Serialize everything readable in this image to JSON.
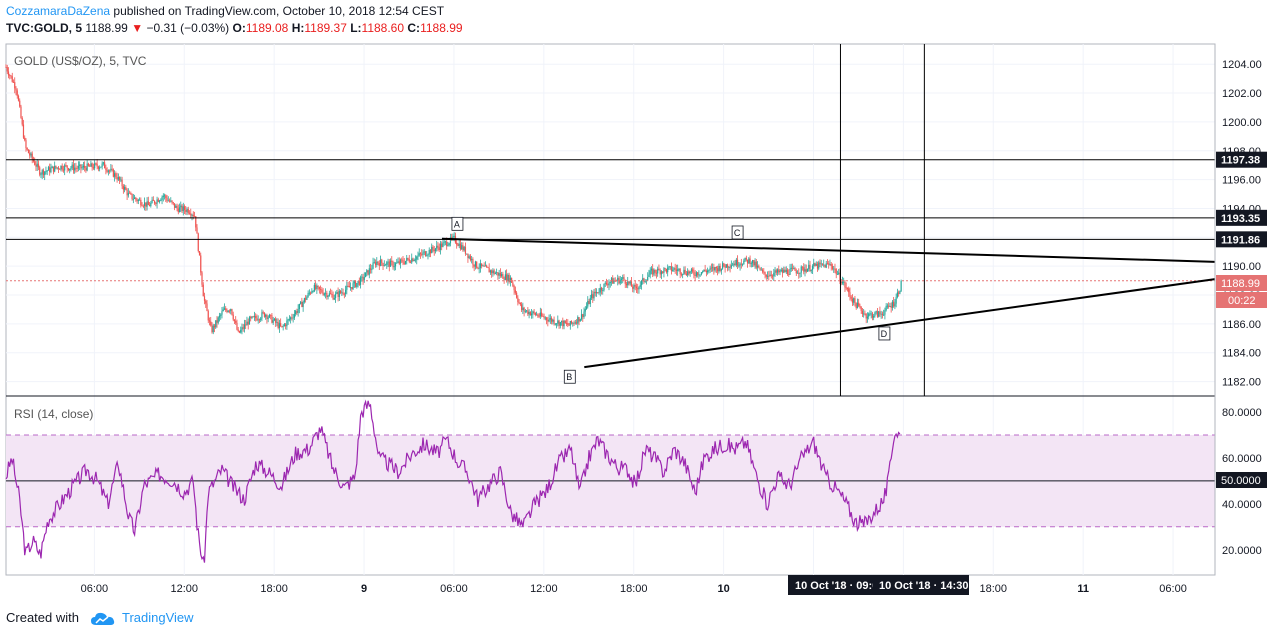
{
  "header": {
    "author": "CozzamaraDaZena",
    "published": "published on TradingView.com, October 10, 2018 12:54 CEST",
    "symbol_line": "TVC:GOLD, 5",
    "last": "1188.99",
    "change": "−0.31 (−0.03%)",
    "o_label": "O:",
    "o": "1189.08",
    "h_label": "H:",
    "h": "1189.37",
    "l_label": "L:",
    "l": "1188.60",
    "c_label": "C:",
    "c": "1188.99"
  },
  "footer": {
    "created_with": "Created with",
    "brand": "TradingView"
  },
  "colors": {
    "up": "#26a69a",
    "down": "#ef5350",
    "rsi": "#9c27b0",
    "rsi_band": "#f3e5f5",
    "price_line": "#e57373",
    "axis_label_bg": "#131722"
  },
  "chart_data": [
    {
      "type": "candlestick",
      "title": "GOLD (US$/OZ), 5, TVC",
      "y_ticks": [
        "1182.00",
        "1184.00",
        "1186.00",
        "1188.00",
        "1190.00",
        "1192.00",
        "1194.00",
        "1196.00",
        "1198.00",
        "1200.00",
        "1202.00",
        "1204.00"
      ],
      "ylim": [
        1181,
        1205.4
      ],
      "x_ticks": [
        "06:00",
        "12:00",
        "18:00",
        "9",
        "06:00",
        "12:00",
        "18:00",
        "10",
        "06:00",
        "12:00",
        "18:00",
        "11",
        "06:00"
      ],
      "x_tick_times": [
        6,
        12,
        18,
        24,
        30,
        36,
        42,
        48,
        54,
        60,
        66,
        72,
        78
      ],
      "xlim": [
        0.1,
        80.8
      ],
      "price_path": [
        [
          0.1,
          1203.8
        ],
        [
          0.8,
          1202.3
        ],
        [
          1.4,
          1198.2
        ],
        [
          2.4,
          1196.5
        ],
        [
          3.7,
          1196.9
        ],
        [
          5.0,
          1196.8
        ],
        [
          6.6,
          1197.0
        ],
        [
          7.5,
          1196.2
        ],
        [
          8.3,
          1194.9
        ],
        [
          9.6,
          1194.2
        ],
        [
          10.6,
          1194.9
        ],
        [
          11.5,
          1194.0
        ],
        [
          12.3,
          1193.9
        ],
        [
          12.7,
          1193.5
        ],
        [
          13.3,
          1187.8
        ],
        [
          13.8,
          1185.5
        ],
        [
          14.6,
          1186.9
        ],
        [
          15.1,
          1187.1
        ],
        [
          15.6,
          1185.3
        ],
        [
          16.3,
          1186.2
        ],
        [
          17.4,
          1186.7
        ],
        [
          18.5,
          1185.7
        ],
        [
          19.5,
          1186.9
        ],
        [
          20.6,
          1188.5
        ],
        [
          22.0,
          1187.9
        ],
        [
          23.8,
          1189.0
        ],
        [
          24.8,
          1190.3
        ],
        [
          26.0,
          1190.1
        ],
        [
          27.4,
          1190.6
        ],
        [
          28.9,
          1191.3
        ],
        [
          30.0,
          1191.9
        ],
        [
          30.8,
          1191.0
        ],
        [
          31.4,
          1190.1
        ],
        [
          32.6,
          1189.6
        ],
        [
          33.8,
          1189.1
        ],
        [
          34.5,
          1187.0
        ],
        [
          35.6,
          1186.6
        ],
        [
          36.7,
          1186.2
        ],
        [
          37.7,
          1185.9
        ],
        [
          38.5,
          1186.5
        ],
        [
          39.2,
          1187.9
        ],
        [
          40.3,
          1188.9
        ],
        [
          41.3,
          1189.1
        ],
        [
          42.1,
          1188.4
        ],
        [
          43.2,
          1189.6
        ],
        [
          44.6,
          1189.8
        ],
        [
          46.0,
          1189.5
        ],
        [
          47.4,
          1189.8
        ],
        [
          48.6,
          1190.2
        ],
        [
          49.8,
          1190.4
        ],
        [
          50.7,
          1189.4
        ],
        [
          51.9,
          1189.6
        ],
        [
          53.0,
          1189.7
        ],
        [
          54.1,
          1190.0
        ],
        [
          55.2,
          1190.1
        ],
        [
          56.0,
          1188.8
        ],
        [
          56.7,
          1187.5
        ],
        [
          57.5,
          1186.6
        ],
        [
          58.5,
          1186.7
        ],
        [
          59.4,
          1187.5
        ],
        [
          59.9,
          1188.9
        ]
      ],
      "lines": {
        "horizontal": [
          {
            "value": 1197.38,
            "label": "1197.38"
          },
          {
            "value": 1193.35,
            "label": "1193.35"
          },
          {
            "value": 1191.86,
            "label": "1191.86"
          }
        ],
        "vertical_times": [
          55.8,
          61.4
        ],
        "trend_upper": [
          [
            29.2,
            1191.9
          ],
          [
            80.8,
            1190.3
          ]
        ],
        "trend_lower": [
          [
            38.7,
            1183.0
          ],
          [
            80.8,
            1189.1
          ]
        ]
      },
      "current_price": {
        "value": 1188.99,
        "label": "1188.99",
        "countdown": "00:22"
      },
      "annotations": [
        {
          "text": "A",
          "time": 30.2,
          "price": 1192.9
        },
        {
          "text": "B",
          "time": 37.7,
          "price": 1182.3
        },
        {
          "text": "C",
          "time": 48.9,
          "price": 1192.3
        },
        {
          "text": "D",
          "time": 58.7,
          "price": 1185.3
        }
      ],
      "crosshair_labels": [
        "10 Oct '18 · 09:0",
        "10 Oct '18 · 14:30"
      ]
    },
    {
      "type": "line",
      "title": "RSI (14, close)",
      "y_ticks": [
        "20.0000",
        "40.0000",
        "60.0000",
        "80.0000"
      ],
      "ylim": [
        9,
        87
      ],
      "band": [
        30,
        70
      ],
      "midline": {
        "value": 50,
        "label": "50.0000"
      },
      "rsi_path": [
        [
          0.1,
          52
        ],
        [
          0.5,
          60
        ],
        [
          1.0,
          42
        ],
        [
          1.4,
          18
        ],
        [
          1.9,
          24
        ],
        [
          2.4,
          18
        ],
        [
          2.9,
          33
        ],
        [
          3.7,
          40
        ],
        [
          4.6,
          48
        ],
        [
          5.5,
          55
        ],
        [
          6.2,
          50
        ],
        [
          6.9,
          40
        ],
        [
          7.6,
          58
        ],
        [
          8.3,
          34
        ],
        [
          8.7,
          28
        ],
        [
          9.3,
          48
        ],
        [
          10.3,
          53
        ],
        [
          11.3,
          50
        ],
        [
          12.0,
          45
        ],
        [
          12.6,
          50
        ],
        [
          12.9,
          28
        ],
        [
          13.3,
          12
        ],
        [
          13.6,
          45
        ],
        [
          14.5,
          55
        ],
        [
          15.2,
          48
        ],
        [
          16.0,
          42
        ],
        [
          16.8,
          58
        ],
        [
          17.6,
          54
        ],
        [
          18.5,
          48
        ],
        [
          19.4,
          62
        ],
        [
          20.3,
          64
        ],
        [
          21.1,
          73
        ],
        [
          21.9,
          56
        ],
        [
          22.7,
          47
        ],
        [
          23.4,
          52
        ],
        [
          23.8,
          80
        ],
        [
          24.4,
          84
        ],
        [
          25.0,
          60
        ],
        [
          25.5,
          58
        ],
        [
          26.3,
          54
        ],
        [
          27.2,
          62
        ],
        [
          28.0,
          66
        ],
        [
          28.9,
          62
        ],
        [
          29.5,
          68
        ],
        [
          30.3,
          58
        ],
        [
          30.9,
          54
        ],
        [
          31.6,
          42
        ],
        [
          32.3,
          48
        ],
        [
          33.1,
          54
        ],
        [
          33.8,
          36
        ],
        [
          34.6,
          30
        ],
        [
          35.4,
          40
        ],
        [
          36.2,
          46
        ],
        [
          37.0,
          58
        ],
        [
          37.8,
          64
        ],
        [
          38.4,
          45
        ],
        [
          39.0,
          60
        ],
        [
          39.6,
          68
        ],
        [
          40.2,
          62
        ],
        [
          40.9,
          56
        ],
        [
          41.6,
          55
        ],
        [
          42.1,
          48
        ],
        [
          42.8,
          64
        ],
        [
          43.4,
          60
        ],
        [
          44.0,
          54
        ],
        [
          44.7,
          64
        ],
        [
          45.4,
          58
        ],
        [
          46.1,
          45
        ],
        [
          46.7,
          60
        ],
        [
          47.4,
          64
        ],
        [
          48.1,
          66
        ],
        [
          48.8,
          64
        ],
        [
          49.5,
          67
        ],
        [
          50.2,
          52
        ],
        [
          50.9,
          40
        ],
        [
          51.6,
          52
        ],
        [
          52.4,
          48
        ],
        [
          53.2,
          60
        ],
        [
          54.0,
          67
        ],
        [
          54.8,
          52
        ],
        [
          55.7,
          45
        ],
        [
          56.2,
          40
        ],
        [
          56.8,
          32
        ],
        [
          57.4,
          31
        ],
        [
          58.0,
          36
        ],
        [
          58.7,
          42
        ],
        [
          59.0,
          50
        ],
        [
          59.4,
          72
        ],
        [
          59.8,
          70
        ]
      ]
    }
  ]
}
